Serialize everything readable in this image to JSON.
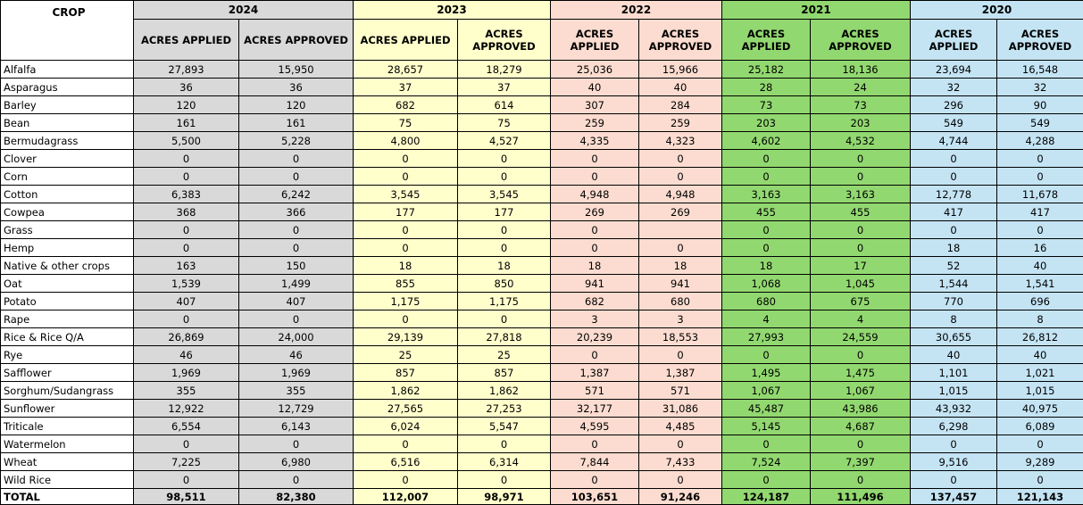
{
  "table": {
    "crop_header": "CROP",
    "years": [
      {
        "year": "2024",
        "applied_label": "ACRES APPLIED",
        "approved_label": "ACRES APPROVED"
      },
      {
        "year": "2023",
        "applied_label": "ACRES APPLIED",
        "approved_label": "ACRES APPROVED"
      },
      {
        "year": "2022",
        "applied_label": "ACRES APPLIED",
        "approved_label": "ACRES APPROVED"
      },
      {
        "year": "2021",
        "applied_label": "ACRES APPLIED",
        "approved_label": "ACRES APPROVED"
      },
      {
        "year": "2020",
        "applied_label": "ACRES APPLIED",
        "approved_label": "ACRES APPROVED"
      }
    ],
    "rows": [
      {
        "crop": "Alfalfa",
        "values": [
          "27,893",
          "15,950",
          "28,657",
          "18,279",
          "25,036",
          "15,966",
          "25,182",
          "18,136",
          "23,694",
          "16,548"
        ]
      },
      {
        "crop": "Asparagus",
        "values": [
          "36",
          "36",
          "37",
          "37",
          "40",
          "40",
          "28",
          "24",
          "32",
          "32"
        ]
      },
      {
        "crop": "Barley",
        "values": [
          "120",
          "120",
          "682",
          "614",
          "307",
          "284",
          "73",
          "73",
          "296",
          "90"
        ]
      },
      {
        "crop": "Bean",
        "values": [
          "161",
          "161",
          "75",
          "75",
          "259",
          "259",
          "203",
          "203",
          "549",
          "549"
        ]
      },
      {
        "crop": "Bermudagrass",
        "values": [
          "5,500",
          "5,228",
          "4,800",
          "4,527",
          "4,335",
          "4,323",
          "4,602",
          "4,532",
          "4,744",
          "4,288"
        ]
      },
      {
        "crop": "Clover",
        "values": [
          "0",
          "0",
          "0",
          "0",
          "0",
          "0",
          "0",
          "0",
          "0",
          "0"
        ]
      },
      {
        "crop": "Corn",
        "values": [
          "0",
          "0",
          "0",
          "0",
          "0",
          "0",
          "0",
          "0",
          "0",
          "0"
        ]
      },
      {
        "crop": "Cotton",
        "values": [
          "6,383",
          "6,242",
          "3,545",
          "3,545",
          "4,948",
          "4,948",
          "3,163",
          "3,163",
          "12,778",
          "11,678"
        ]
      },
      {
        "crop": "Cowpea",
        "values": [
          "368",
          "366",
          "177",
          "177",
          "269",
          "269",
          "455",
          "455",
          "417",
          "417"
        ]
      },
      {
        "crop": "Grass",
        "values": [
          "0",
          "0",
          "0",
          "0",
          "0",
          "",
          "0",
          "0",
          "0",
          "0"
        ]
      },
      {
        "crop": "Hemp",
        "values": [
          "0",
          "0",
          "0",
          "0",
          "0",
          "0",
          "0",
          "0",
          "18",
          "16"
        ]
      },
      {
        "crop": "Native & other crops",
        "values": [
          "163",
          "150",
          "18",
          "18",
          "18",
          "18",
          "18",
          "17",
          "52",
          "40"
        ]
      },
      {
        "crop": "Oat",
        "values": [
          "1,539",
          "1,499",
          "855",
          "850",
          "941",
          "941",
          "1,068",
          "1,045",
          "1,544",
          "1,541"
        ]
      },
      {
        "crop": "Potato",
        "values": [
          "407",
          "407",
          "1,175",
          "1,175",
          "682",
          "680",
          "680",
          "675",
          "770",
          "696"
        ]
      },
      {
        "crop": "Rape",
        "values": [
          "0",
          "0",
          "0",
          "0",
          "3",
          "3",
          "4",
          "4",
          "8",
          "8"
        ]
      },
      {
        "crop": "Rice & Rice Q/A",
        "values": [
          "26,869",
          "24,000",
          "29,139",
          "27,818",
          "20,239",
          "18,553",
          "27,993",
          "24,559",
          "30,655",
          "26,812"
        ]
      },
      {
        "crop": "Rye",
        "values": [
          "46",
          "46",
          "25",
          "25",
          "0",
          "0",
          "0",
          "0",
          "40",
          "40"
        ]
      },
      {
        "crop": "Safflower",
        "values": [
          "1,969",
          "1,969",
          "857",
          "857",
          "1,387",
          "1,387",
          "1,495",
          "1,475",
          "1,101",
          "1,021"
        ]
      },
      {
        "crop": "Sorghum/Sudangrass",
        "values": [
          "355",
          "355",
          "1,862",
          "1,862",
          "571",
          "571",
          "1,067",
          "1,067",
          "1,015",
          "1,015"
        ]
      },
      {
        "crop": "Sunflower",
        "values": [
          "12,922",
          "12,729",
          "27,565",
          "27,253",
          "32,177",
          "31,086",
          "45,487",
          "43,986",
          "43,932",
          "40,975"
        ]
      },
      {
        "crop": "Triticale",
        "values": [
          "6,554",
          "6,143",
          "6,024",
          "5,547",
          "4,595",
          "4,485",
          "5,145",
          "4,687",
          "6,298",
          "6,089"
        ]
      },
      {
        "crop": "Watermelon",
        "values": [
          "0",
          "0",
          "0",
          "0",
          "0",
          "0",
          "0",
          "0",
          "0",
          "0"
        ]
      },
      {
        "crop": "Wheat",
        "values": [
          "7,225",
          "6,980",
          "6,516",
          "6,314",
          "7,844",
          "7,433",
          "7,524",
          "7,397",
          "9,516",
          "9,289"
        ]
      },
      {
        "crop": "Wild Rice",
        "values": [
          "0",
          "0",
          "0",
          "0",
          "0",
          "0",
          "0",
          "0",
          "0",
          "0"
        ]
      }
    ],
    "total": {
      "crop": "TOTAL",
      "values": [
        "98,511",
        "82,380",
        "112,007",
        "98,971",
        "103,651",
        "91,246",
        "124,187",
        "111,496",
        "137,457",
        "121,143"
      ]
    }
  },
  "colors": {
    "y2024": "#d9d9d9",
    "y2023": "#ffffcc",
    "y2022": "#fcdcd0",
    "y2021": "#92d870",
    "y2020": "#c4e4f4"
  }
}
